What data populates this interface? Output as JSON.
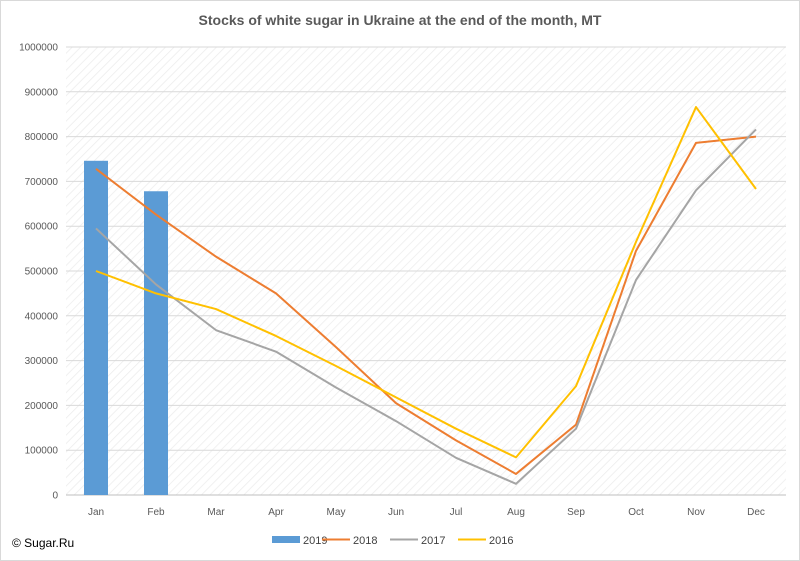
{
  "chart_data": {
    "type": "bar+line",
    "title": "Stocks of white sugar in Ukraine at the end of the month, MT",
    "credit": "© Sugar.Ru",
    "categories": [
      "Jan",
      "Feb",
      "Mar",
      "Apr",
      "May",
      "Jun",
      "Jul",
      "Aug",
      "Sep",
      "Oct",
      "Nov",
      "Dec"
    ],
    "ylim": [
      0,
      1000000
    ],
    "yticks": [
      0,
      100000,
      200000,
      300000,
      400000,
      500000,
      600000,
      700000,
      800000,
      900000,
      1000000
    ],
    "grid": true,
    "legend_position": "bottom",
    "series": [
      {
        "name": "2019",
        "type": "bar",
        "color": "#5b9bd5",
        "values": [
          746000,
          678000,
          null,
          null,
          null,
          null,
          null,
          null,
          null,
          null,
          null,
          null
        ]
      },
      {
        "name": "2018",
        "type": "line",
        "color": "#ed7d31",
        "values": [
          728000,
          626000,
          532000,
          450000,
          330000,
          205000,
          122000,
          47000,
          157000,
          545000,
          786000,
          800000
        ]
      },
      {
        "name": "2017",
        "type": "line",
        "color": "#a5a5a5",
        "values": [
          595000,
          470000,
          368000,
          320000,
          240000,
          165000,
          83000,
          25000,
          148000,
          480000,
          680000,
          816000
        ]
      },
      {
        "name": "2016",
        "type": "line",
        "color": "#ffc000",
        "values": [
          500000,
          450000,
          415000,
          355000,
          288000,
          218000,
          148000,
          84000,
          243000,
          565000,
          866000,
          683000
        ]
      }
    ]
  }
}
